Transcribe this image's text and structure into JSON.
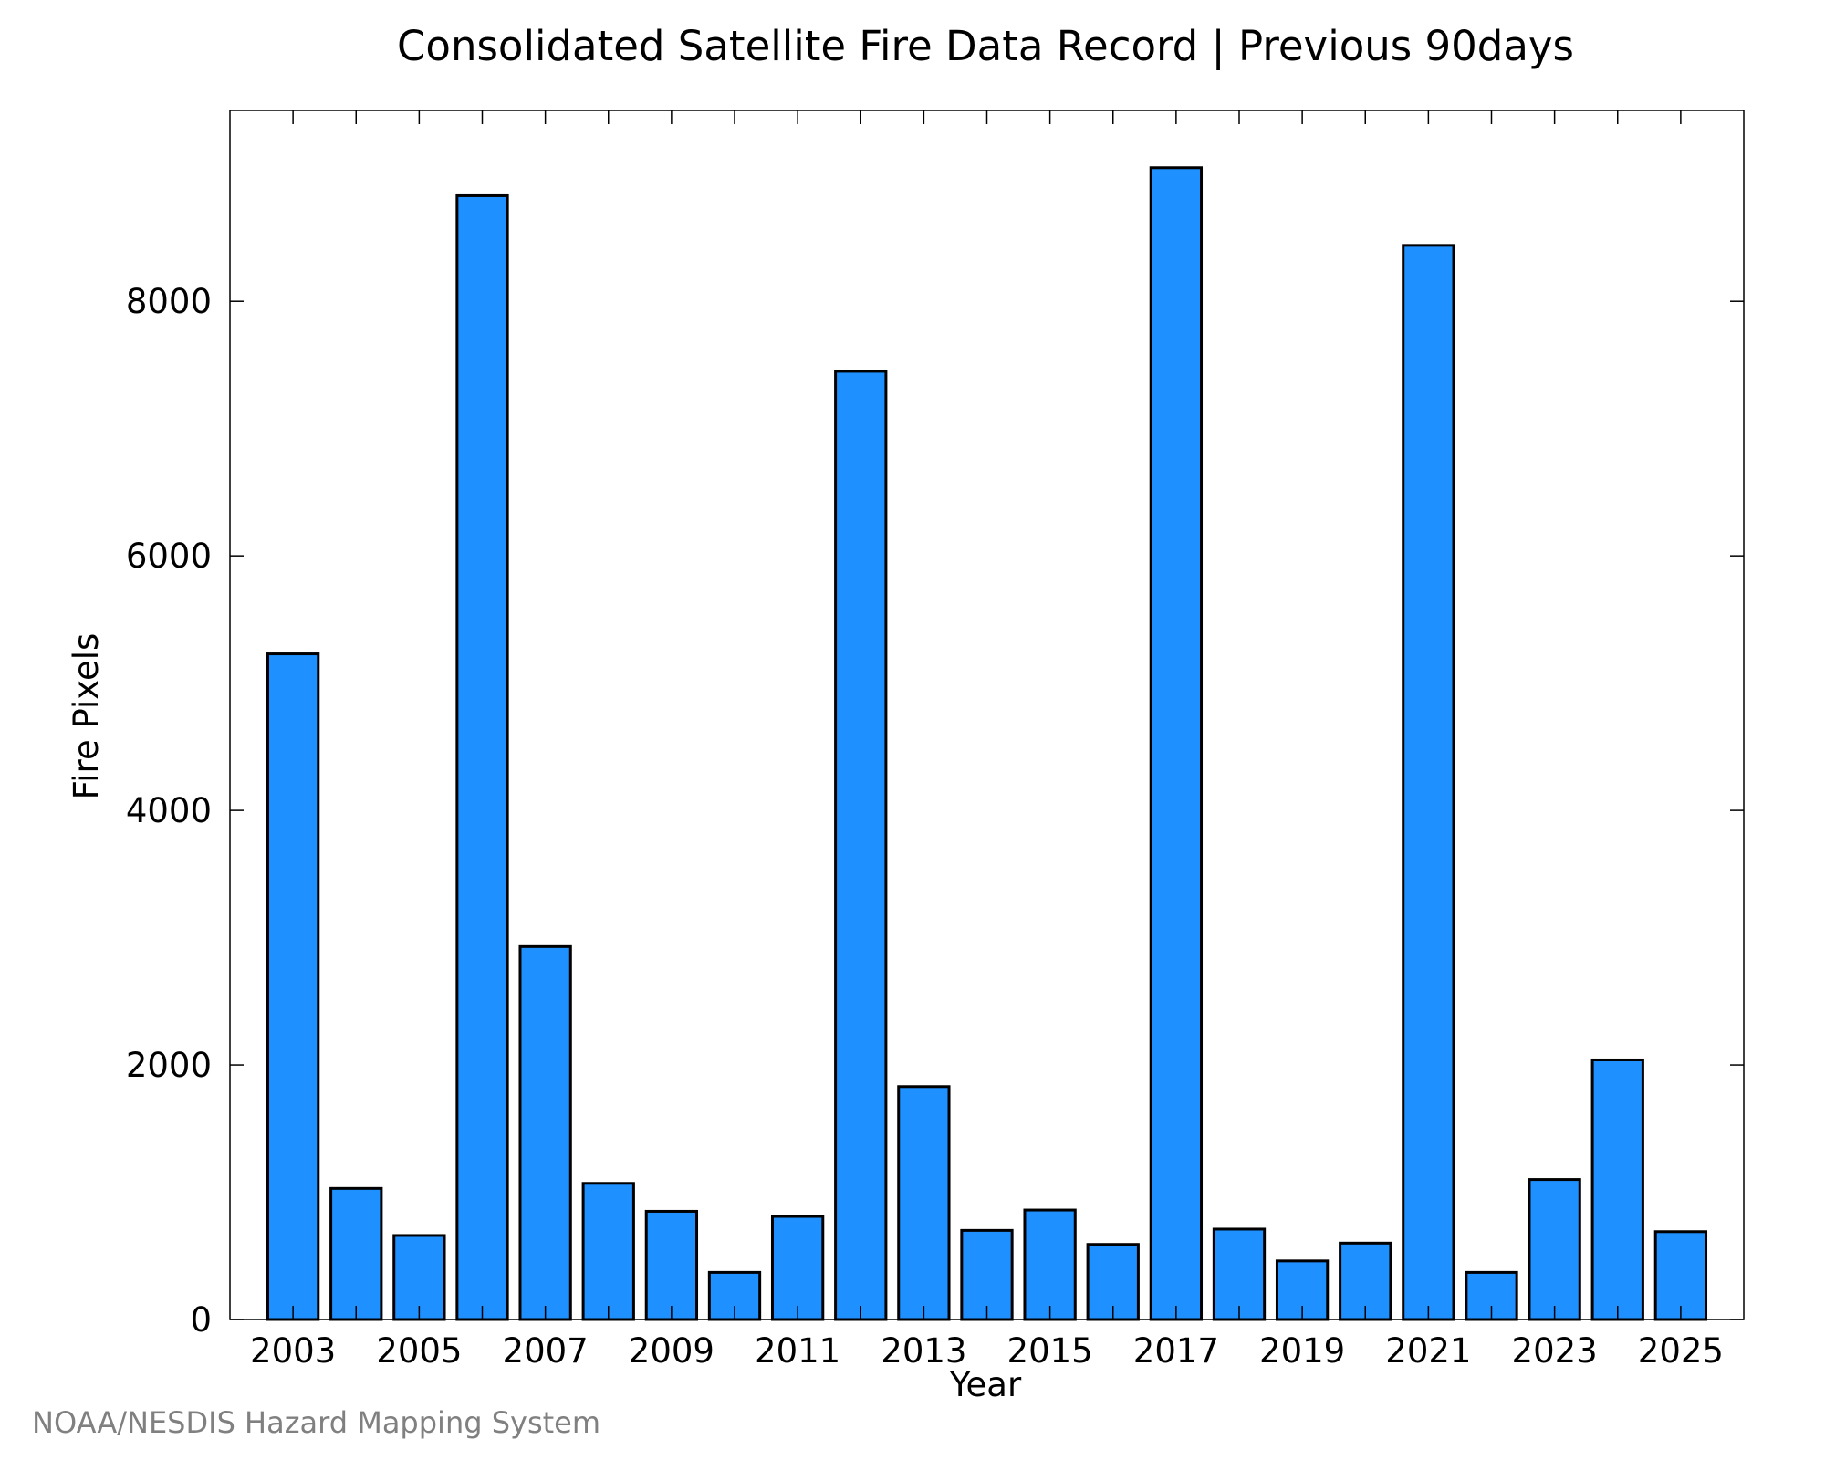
{
  "chart_data": {
    "type": "bar",
    "title": "Consolidated Satellite Fire Data Record | Previous 90days",
    "xlabel": "Year",
    "ylabel": "Fire Pixels",
    "credit": "NOAA/NESDIS Hazard Mapping System",
    "categories": [
      "2003",
      "2004",
      "2005",
      "2006",
      "2007",
      "2008",
      "2009",
      "2010",
      "2011",
      "2012",
      "2013",
      "2014",
      "2015",
      "2016",
      "2017",
      "2018",
      "2019",
      "2020",
      "2021",
      "2022",
      "2023",
      "2024",
      "2025"
    ],
    "values": [
      5230,
      1030,
      660,
      8830,
      2930,
      1070,
      850,
      370,
      810,
      7450,
      1830,
      700,
      860,
      590,
      9050,
      710,
      460,
      600,
      8440,
      370,
      1100,
      2040,
      690
    ],
    "xtick_labels": [
      "2003",
      "2005",
      "2007",
      "2009",
      "2011",
      "2013",
      "2015",
      "2017",
      "2019",
      "2021",
      "2023",
      "2025"
    ],
    "ytick_labels": [
      "0",
      "2000",
      "4000",
      "6000",
      "8000"
    ],
    "ylim": [
      0,
      9500
    ],
    "grid": false,
    "bar_color": "#1e90ff",
    "edge_color": "#000000"
  }
}
